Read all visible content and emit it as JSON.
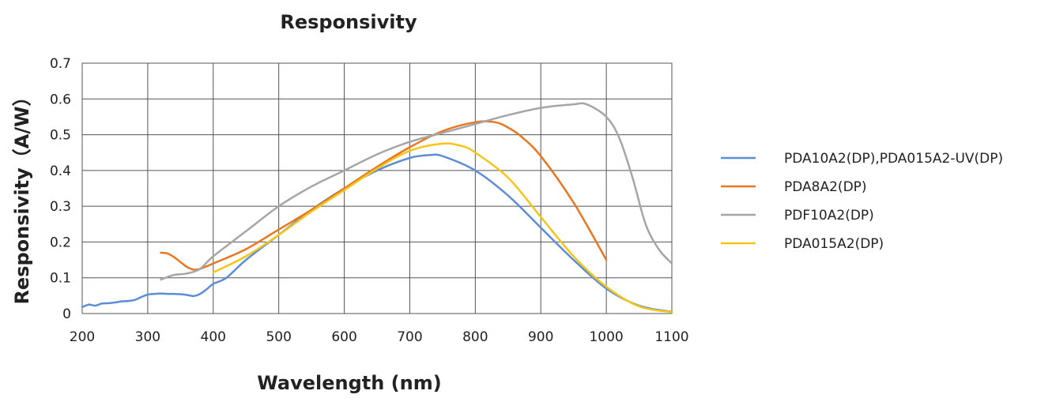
{
  "chart_data": {
    "type": "line",
    "title": "Responsivity",
    "xlabel": "Wavelength (nm)",
    "ylabel": "Responsivity（A/W）",
    "xlim": [
      200,
      1100
    ],
    "ylim": [
      0,
      0.7
    ],
    "xticks": [
      "200",
      "300",
      "400",
      "500",
      "600",
      "700",
      "800",
      "900",
      "1000",
      "1100"
    ],
    "yticks": [
      "0",
      "0.1",
      "0.2",
      "0.3",
      "0.4",
      "0.5",
      "0.6",
      "0.7"
    ],
    "grid": true,
    "legend_position": "right",
    "series": [
      {
        "name": "PDA10A2(DP),PDA015A2-UV(DP)",
        "color": "#5b8ed6",
        "x": [
          200,
          210,
          220,
          230,
          240,
          250,
          260,
          270,
          280,
          290,
          300,
          310,
          320,
          330,
          340,
          350,
          360,
          370,
          380,
          390,
          400,
          420,
          450,
          500,
          550,
          600,
          650,
          700,
          730,
          750,
          800,
          850,
          900,
          950,
          1000,
          1050,
          1100
        ],
        "values": [
          0.018,
          0.025,
          0.022,
          0.028,
          0.029,
          0.031,
          0.034,
          0.035,
          0.038,
          0.046,
          0.053,
          0.055,
          0.056,
          0.055,
          0.055,
          0.054,
          0.052,
          0.049,
          0.055,
          0.068,
          0.083,
          0.1,
          0.15,
          0.22,
          0.29,
          0.35,
          0.4,
          0.435,
          0.443,
          0.44,
          0.4,
          0.33,
          0.24,
          0.15,
          0.07,
          0.022,
          0.005
        ]
      },
      {
        "name": "PDA8A2(DP)",
        "color": "#e87722",
        "x": [
          320,
          330,
          340,
          350,
          360,
          370,
          380,
          400,
          450,
          500,
          550,
          600,
          650,
          700,
          750,
          800,
          830,
          850,
          870,
          900,
          950,
          1000
        ],
        "values": [
          0.17,
          0.168,
          0.158,
          0.144,
          0.13,
          0.123,
          0.125,
          0.14,
          0.18,
          0.235,
          0.29,
          0.35,
          0.41,
          0.465,
          0.51,
          0.535,
          0.535,
          0.52,
          0.495,
          0.44,
          0.31,
          0.15
        ]
      },
      {
        "name": "PDF10A2(DP)",
        "color": "#a6a6a6",
        "x": [
          320,
          340,
          360,
          380,
          400,
          450,
          500,
          550,
          600,
          650,
          700,
          750,
          800,
          850,
          900,
          950,
          970,
          1000,
          1020,
          1040,
          1060,
          1080,
          1100
        ],
        "values": [
          0.095,
          0.108,
          0.112,
          0.125,
          0.16,
          0.23,
          0.3,
          0.355,
          0.4,
          0.445,
          0.48,
          0.505,
          0.53,
          0.555,
          0.575,
          0.585,
          0.585,
          0.55,
          0.49,
          0.38,
          0.25,
          0.18,
          0.14
        ]
      },
      {
        "name": "PDA015A2(DP)",
        "color": "#f5c518",
        "x": [
          400,
          450,
          500,
          550,
          600,
          650,
          700,
          750,
          780,
          800,
          850,
          900,
          950,
          1000,
          1050,
          1100
        ],
        "values": [
          0.115,
          0.16,
          0.22,
          0.285,
          0.345,
          0.405,
          0.455,
          0.475,
          0.468,
          0.45,
          0.38,
          0.27,
          0.16,
          0.075,
          0.02,
          0.004
        ]
      }
    ]
  }
}
